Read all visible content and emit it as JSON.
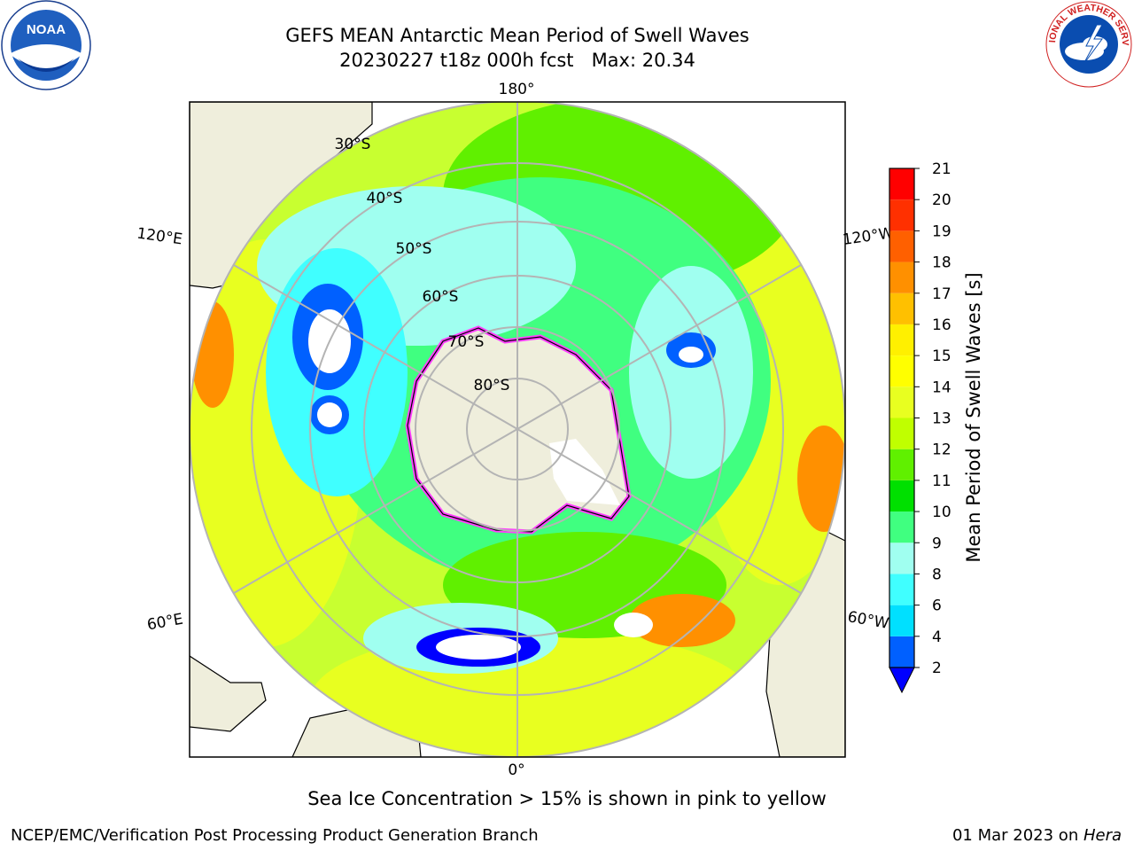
{
  "title": {
    "line1": "GEFS MEAN Antarctic Mean Period of Swell Waves",
    "line2": "20230227 t18z 000h fcst   Max: 20.34"
  },
  "logos": {
    "left": "NOAA",
    "right": "NATIONAL WEATHER SERVICE"
  },
  "map": {
    "projection": "south-polar-stereographic",
    "longitude_labels": [
      "180°",
      "120°E",
      "120°W",
      "60°E",
      "60°W",
      "0°"
    ],
    "latitude_labels": [
      "30°S",
      "40°S",
      "50°S",
      "60°S",
      "70°S",
      "80°S"
    ]
  },
  "colorbar": {
    "label": "Mean Period of Swell Waves [s]",
    "ticks": [
      "2",
      "4",
      "6",
      "8",
      "9",
      "10",
      "11",
      "12",
      "13",
      "14",
      "15",
      "16",
      "17",
      "18",
      "19",
      "20",
      "21"
    ],
    "colors": [
      "#0060ff",
      "#00e0ff",
      "#40ffff",
      "#a0fff0",
      "#40ff80",
      "#00e000",
      "#60f000",
      "#c0ff00",
      "#e8ff20",
      "#ffff00",
      "#fff000",
      "#ffc000",
      "#ff9000",
      "#ff6000",
      "#ff3000",
      "#ff0000"
    ],
    "extend_color": "#0000ff"
  },
  "caption": "Sea Ice Concentration > 15% is shown in pink to yellow",
  "footer": {
    "left": "NCEP/EMC/Verification Post Processing Product Generation Branch",
    "right_prefix": "01 Mar 2023 on ",
    "right_host": "Hera"
  }
}
